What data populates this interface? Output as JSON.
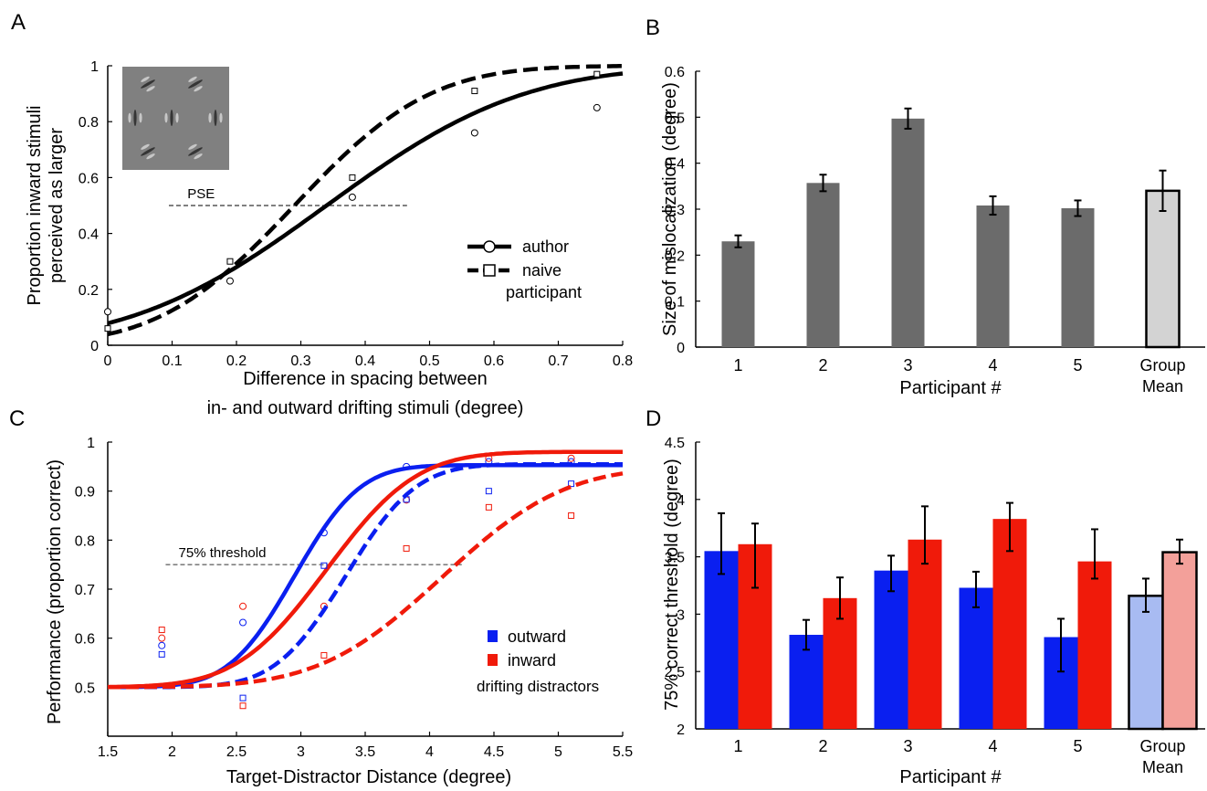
{
  "chart_data": [
    {
      "panel": "A",
      "type": "line",
      "xlabel": [
        "Difference in spacing between",
        "in- and outward drifting stimuli (degree)"
      ],
      "ylabel": [
        "Proportion inward stimuli",
        "perceived as larger"
      ],
      "xlim": [
        0,
        0.8
      ],
      "ylim": [
        0,
        1
      ],
      "xticks": [
        "0",
        "0.1",
        "0.2",
        "0.3",
        "0.4",
        "0.5",
        "0.6",
        "0.7",
        "0.8"
      ],
      "yticks": [
        "0",
        "0.2",
        "0.4",
        "0.6",
        "0.8",
        "1"
      ],
      "reference_line": {
        "label": "PSE",
        "y": 0.5,
        "x_range": [
          0.095,
          0.465
        ]
      },
      "legend": {
        "placement": "lower-right",
        "entries": [
          "author",
          "naive",
          "participant"
        ]
      },
      "series": [
        {
          "name": "author",
          "style": "solid",
          "marker": "circle",
          "points": {
            "x": [
              0,
              0.19,
              0.38,
              0.57,
              0.76
            ],
            "y": [
              0.12,
              0.23,
              0.53,
              0.76,
              0.85
            ]
          },
          "fit": {
            "mu": 0.34,
            "sigma": 0.24
          }
        },
        {
          "name": "naive participant",
          "style": "dashed",
          "marker": "square",
          "points": {
            "x": [
              0,
              0.19,
              0.38,
              0.57,
              0.76
            ],
            "y": [
              0.06,
              0.3,
              0.6,
              0.91,
              0.97
            ]
          },
          "fit": {
            "mu": 0.29,
            "sigma": 0.165
          }
        }
      ],
      "has_stimulus_inset": true
    },
    {
      "panel": "B",
      "type": "bar",
      "xlabel": "Participant #",
      "ylabel": "Size of mislocalization (degree)",
      "ylim": [
        0,
        0.6
      ],
      "yticks": [
        "0",
        "0.1",
        "0.2",
        "0.3",
        "0.4",
        "0.5",
        "0.6"
      ],
      "categories": [
        "1",
        "2",
        "3",
        "4",
        "5",
        [
          "Group",
          "Mean"
        ]
      ],
      "values": [
        0.23,
        0.357,
        0.497,
        0.308,
        0.302,
        0.34
      ],
      "errors": [
        0.013,
        0.018,
        0.022,
        0.02,
        0.017,
        0.044
      ],
      "colors": [
        "#6b6b6b",
        "#6b6b6b",
        "#6b6b6b",
        "#6b6b6b",
        "#6b6b6b",
        "#d3d3d3"
      ]
    },
    {
      "panel": "C",
      "type": "line",
      "xlabel": "Target-Distractor Distance (degree)",
      "ylabel": "Performance (proportion correct)",
      "xlim": [
        1.5,
        5.5
      ],
      "ylim": [
        0.4,
        1.0
      ],
      "xticks": [
        "1.5",
        "2",
        "2.5",
        "3",
        "3.5",
        "4",
        "4.5",
        "5",
        "5.5"
      ],
      "yticks": [
        "0.5",
        "0.6",
        "0.7",
        "0.8",
        "0.9",
        "1"
      ],
      "reference_line": {
        "label": "75% threshold",
        "y": 0.75,
        "x_range": [
          1.95,
          4.25
        ]
      },
      "legend": {
        "placement": "lower-right",
        "entries": [
          "outward",
          "inward",
          "drifting distractors"
        ],
        "colors": [
          "#0a1ff0",
          "#f01a0a"
        ]
      },
      "series": [
        {
          "name": "outward",
          "style": "solid",
          "color": "#0a1ff0",
          "marker": "circle",
          "points": {
            "x": [
              1.92,
              2.55,
              3.18,
              3.82,
              4.46,
              5.1
            ],
            "y": [
              0.585,
              0.632,
              0.815,
              0.95,
              0.96,
              0.96
            ]
          },
          "fit": {
            "lower": 0.5,
            "upper": 0.953,
            "mu": 2.95,
            "sigma": 0.4
          }
        },
        {
          "name": "inward",
          "style": "solid",
          "color": "#f01a0a",
          "marker": "circle",
          "points": {
            "x": [
              1.92,
              2.55,
              3.18,
              3.82,
              4.46,
              5.1
            ],
            "y": [
              0.6,
              0.665,
              0.665,
              0.882,
              0.967,
              0.967
            ]
          },
          "fit": {
            "lower": 0.5,
            "upper": 0.98,
            "mu": 3.2,
            "sigma": 0.55
          }
        },
        {
          "name": "outward (naive)",
          "style": "dashed",
          "color": "#0a1ff0",
          "marker": "square",
          "points": {
            "x": [
              1.92,
              2.55,
              3.18,
              3.82,
              4.46,
              5.1
            ],
            "y": [
              0.567,
              0.478,
              0.748,
              0.883,
              0.9,
              0.915
            ]
          },
          "fit": {
            "lower": 0.5,
            "upper": 0.955,
            "mu": 3.35,
            "sigma": 0.43
          }
        },
        {
          "name": "inward (naive)",
          "style": "dashed",
          "color": "#f01a0a",
          "marker": "square",
          "points": {
            "x": [
              1.92,
              2.55,
              3.18,
              3.82,
              4.46,
              5.1
            ],
            "y": [
              0.617,
              0.462,
              0.565,
              0.783,
              0.867,
              0.85
            ]
          },
          "fit": {
            "lower": 0.5,
            "upper": 0.95,
            "mu": 4.1,
            "sigma": 0.75
          }
        }
      ]
    },
    {
      "panel": "D",
      "type": "bar",
      "xlabel": "Participant #",
      "ylabel": "75% correct threshold (degree)",
      "ylim": [
        2,
        4.5
      ],
      "yticks": [
        "2",
        "2.5",
        "3",
        "3.5",
        "4",
        "4.5"
      ],
      "categories": [
        "1",
        "2",
        "3",
        "4",
        "5",
        [
          "Group",
          "Mean"
        ]
      ],
      "series": [
        {
          "name": "outward",
          "values": [
            3.55,
            2.82,
            3.38,
            3.23,
            2.8,
            3.16
          ],
          "errors_low": [
            0.2,
            0.13,
            0.18,
            0.17,
            0.3,
            0.14
          ],
          "errors_high": [
            0.33,
            0.13,
            0.13,
            0.14,
            0.16,
            0.15
          ],
          "colors": [
            "#0a1ff0",
            "#0a1ff0",
            "#0a1ff0",
            "#0a1ff0",
            "#0a1ff0",
            "#a8bbf2"
          ]
        },
        {
          "name": "inward",
          "values": [
            3.61,
            3.14,
            3.65,
            3.83,
            3.46,
            3.54
          ],
          "errors_low": [
            0.38,
            0.18,
            0.21,
            0.28,
            0.15,
            0.1
          ],
          "errors_high": [
            0.18,
            0.18,
            0.29,
            0.14,
            0.28,
            0.11
          ],
          "colors": [
            "#f01a0a",
            "#f01a0a",
            "#f01a0a",
            "#f01a0a",
            "#f01a0a",
            "#f3a09a"
          ]
        }
      ]
    }
  ],
  "panel_labels": [
    "A",
    "B",
    "C",
    "D"
  ]
}
